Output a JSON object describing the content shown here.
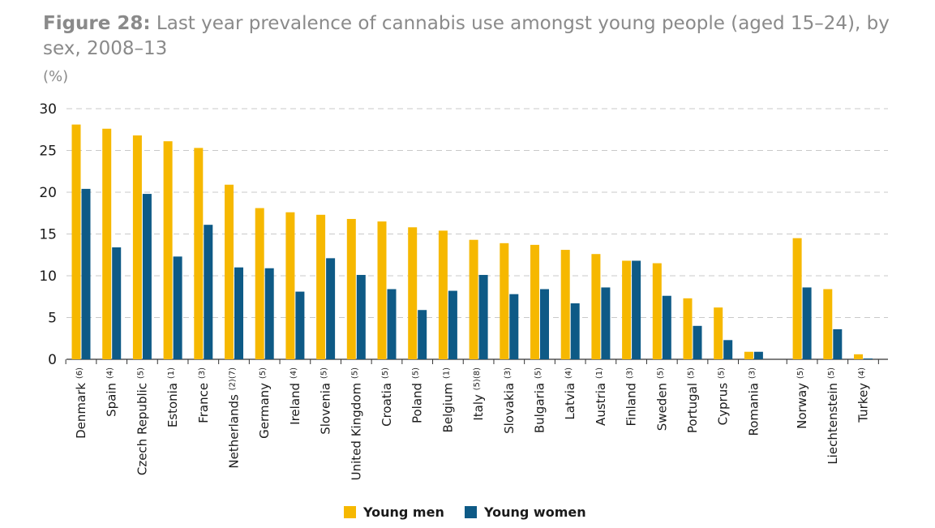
{
  "title_prefix": "Figure 28:",
  "title_text": "Last year prevalence of cannabis use amongst young people (aged 15–24), by sex, 2008–13",
  "unit": "(%)",
  "colors": {
    "men": "#F6B800",
    "women": "#0E5A86",
    "grid": "#c9c9c9",
    "axis": "#333333"
  },
  "chart_data": {
    "type": "bar",
    "title": "Last year prevalence of cannabis use amongst young people (aged 15–24), by sex, 2008–13",
    "ylabel": "(%)",
    "ylim": [
      0,
      30
    ],
    "yticks": [
      0,
      5,
      10,
      15,
      20,
      25,
      30
    ],
    "grid": true,
    "legend": "bottom",
    "categories": [
      {
        "name": "Denmark",
        "note": "(6)"
      },
      {
        "name": "Spain",
        "note": "(4)"
      },
      {
        "name": "Czech Republic",
        "note": "(5)"
      },
      {
        "name": "Estonia",
        "note": "(1)"
      },
      {
        "name": "France",
        "note": "(3)"
      },
      {
        "name": "Netherlands",
        "note": "(2)(7)"
      },
      {
        "name": "Germany",
        "note": "(5)"
      },
      {
        "name": "Ireland",
        "note": "(4)"
      },
      {
        "name": "Slovenia",
        "note": "(5)"
      },
      {
        "name": "United Kingdom",
        "note": "(5)"
      },
      {
        "name": "Croatia",
        "note": "(5)"
      },
      {
        "name": "Poland",
        "note": "(5)"
      },
      {
        "name": "Belgium",
        "note": "(1)"
      },
      {
        "name": "Italy",
        "note": "(5)(8)"
      },
      {
        "name": "Slovakia",
        "note": "(3)"
      },
      {
        "name": "Bulgaria",
        "note": "(5)"
      },
      {
        "name": "Latvia",
        "note": "(4)"
      },
      {
        "name": "Austria",
        "note": "(1)"
      },
      {
        "name": "Finland",
        "note": "(3)"
      },
      {
        "name": "Sweden",
        "note": "(5)"
      },
      {
        "name": "Portugal",
        "note": "(5)"
      },
      {
        "name": "Cyprus",
        "note": "(5)"
      },
      {
        "name": "Romania",
        "note": "(3)"
      },
      {
        "name": "Norway",
        "note": "(5)"
      },
      {
        "name": "Liechtenstein",
        "note": "(5)"
      },
      {
        "name": "Turkey",
        "note": "(4)"
      }
    ],
    "series": [
      {
        "name": "Young men",
        "key": "men",
        "values": [
          28.1,
          27.6,
          26.8,
          26.1,
          25.3,
          20.9,
          18.1,
          17.6,
          17.3,
          16.8,
          16.5,
          15.8,
          15.4,
          14.3,
          13.9,
          13.7,
          13.1,
          12.6,
          11.8,
          11.5,
          7.3,
          6.2,
          0.9,
          14.5,
          8.4,
          0.6
        ]
      },
      {
        "name": "Young women",
        "key": "women",
        "values": [
          20.4,
          13.4,
          19.8,
          12.3,
          16.1,
          11.0,
          10.9,
          8.1,
          12.1,
          10.1,
          8.4,
          5.9,
          8.2,
          10.1,
          7.8,
          8.4,
          6.7,
          8.6,
          11.8,
          7.6,
          4.0,
          2.3,
          0.9,
          8.6,
          3.6,
          0.1
        ]
      }
    ]
  }
}
